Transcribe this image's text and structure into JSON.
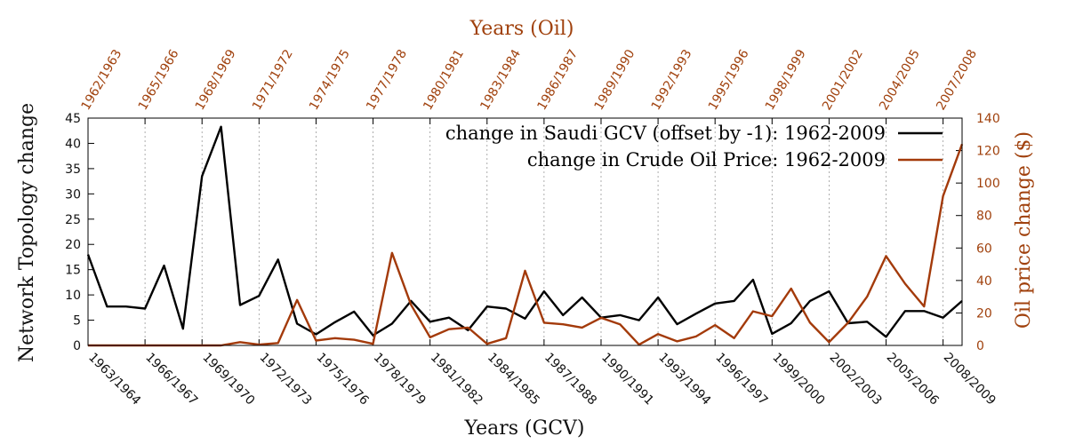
{
  "chart_data": {
    "type": "line",
    "title_top": "Years (Oil)",
    "xlabel": "Years (GCV)",
    "ylabel_left": "Network Topology change",
    "ylabel_right": "Oil price change ($)",
    "y_left_range": [
      0,
      45
    ],
    "y_left_ticks": [
      "0",
      "5",
      "10",
      "15",
      "20",
      "25",
      "30",
      "35",
      "40",
      "45"
    ],
    "y_right_range": [
      0,
      140
    ],
    "y_right_ticks": [
      "0",
      "20",
      "40",
      "60",
      "80",
      "100",
      "120",
      "140"
    ],
    "bottom_tick_labels": [
      "1963/1964",
      "1966/1967",
      "1969/1970",
      "1972/1973",
      "1975/1976",
      "1978/1979",
      "1981/1982",
      "1984/1985",
      "1987/1988",
      "1990/1991",
      "1993/1994",
      "1996/1997",
      "1999/2000",
      "2002/2003",
      "2005/2006",
      "2008/2009"
    ],
    "top_tick_labels": [
      "1962/1963",
      "1965/1966",
      "1968/1969",
      "1971/1972",
      "1974/1975",
      "1977/1978",
      "1980/1981",
      "1983/1984",
      "1986/1987",
      "1989/1990",
      "1992/1993",
      "1995/1996",
      "1998/1999",
      "2001/2002",
      "2004/2005",
      "2007/2008"
    ],
    "x_start_year": 1963,
    "x_end_year": 2009,
    "series": [
      {
        "name": "change in Saudi GCV (offset by -1): 1962-2009",
        "color": "#000000",
        "axis": "left",
        "x": [
          1963,
          1964,
          1965,
          1966,
          1967,
          1968,
          1969,
          1970,
          1971,
          1972,
          1973,
          1974,
          1975,
          1976,
          1977,
          1978,
          1979,
          1980,
          1981,
          1982,
          1983,
          1984,
          1985,
          1986,
          1987,
          1988,
          1989,
          1990,
          1991,
          1992,
          1993,
          1994,
          1995,
          1996,
          1997,
          1998,
          1999,
          2000,
          2001,
          2002,
          2003,
          2004,
          2005,
          2006,
          2007,
          2008,
          2009
        ],
        "values": [
          18,
          7.7,
          7.7,
          7.3,
          15.8,
          3.3,
          33.5,
          43.3,
          8,
          9.8,
          17,
          4.3,
          2.2,
          4.6,
          6.7,
          2,
          4.3,
          8.8,
          4.7,
          5.5,
          3,
          7.7,
          7.3,
          5.3,
          10.7,
          6,
          9.5,
          5.5,
          6,
          5,
          9.5,
          4.2,
          6.3,
          8.3,
          8.8,
          13,
          2.3,
          4.4,
          8.8,
          10.7,
          4.4,
          4.7,
          1.7,
          6.8,
          6.8,
          5.5,
          8.8
        ]
      },
      {
        "name": "change in Crude Oil Price: 1962-2009",
        "color": "#a33a0a",
        "axis": "right",
        "x": [
          1963,
          1964,
          1965,
          1966,
          1967,
          1968,
          1969,
          1970,
          1971,
          1972,
          1973,
          1974,
          1975,
          1976,
          1977,
          1978,
          1979,
          1980,
          1981,
          1982,
          1983,
          1984,
          1985,
          1986,
          1987,
          1988,
          1989,
          1990,
          1991,
          1992,
          1993,
          1994,
          1995,
          1996,
          1997,
          1998,
          1999,
          2000,
          2001,
          2002,
          2003,
          2004,
          2005,
          2006,
          2007,
          2008,
          2009
        ],
        "values": [
          0,
          0,
          0,
          0,
          0,
          0,
          0,
          0,
          2,
          0.5,
          1.5,
          28,
          3,
          4.5,
          3.5,
          1,
          57,
          25,
          5,
          10,
          11,
          1,
          4.5,
          46,
          14,
          13,
          11,
          17,
          13,
          0.5,
          7,
          2.5,
          5.5,
          12.5,
          4.5,
          21,
          18,
          35,
          14,
          2,
          14,
          30,
          55,
          38,
          24,
          92,
          124
        ]
      }
    ]
  }
}
